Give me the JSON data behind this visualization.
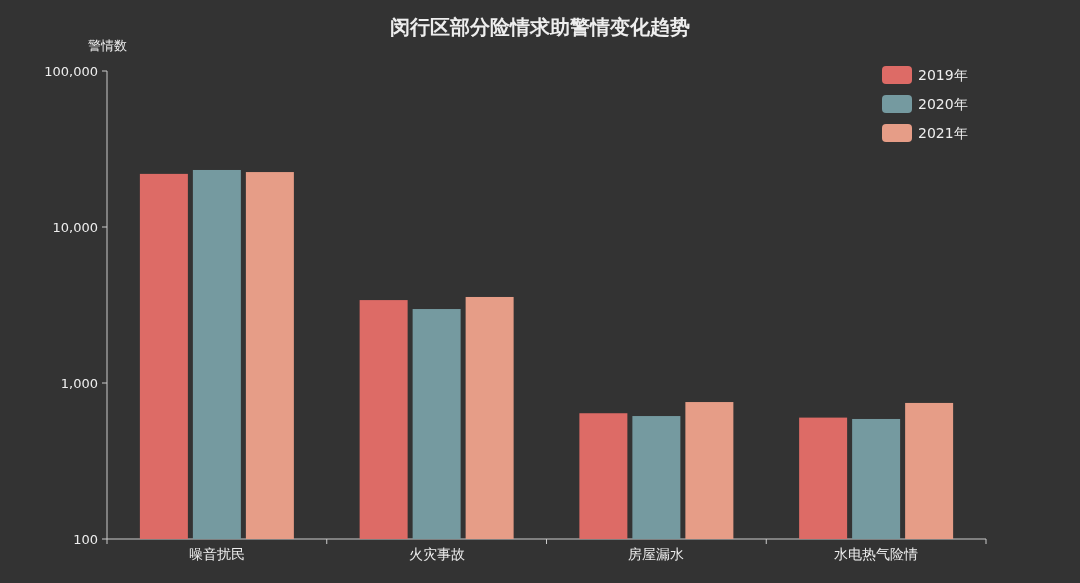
{
  "chart_data": {
    "type": "bar",
    "title": "闵行区部分险情求助警情变化趋势",
    "ylabel": "警情数",
    "categories": [
      "噪音扰民",
      "火灾事故",
      "房屋漏水",
      "水电热气险情"
    ],
    "series": [
      {
        "name": "2019年",
        "color": "#dd6b66",
        "values": [
          21900,
          3400,
          640,
          600
        ]
      },
      {
        "name": "2020年",
        "color": "#759aa0",
        "values": [
          23200,
          2980,
          614,
          588
        ]
      },
      {
        "name": "2021年",
        "color": "#e69d87",
        "values": [
          22500,
          3560,
          755,
          745
        ]
      }
    ],
    "log": true,
    "ylim": [
      100,
      100000
    ],
    "yticks": [
      100,
      {
        "value": 1000,
        "label": "1,000"
      },
      {
        "value": 10000,
        "label": "10,000"
      },
      {
        "value": 100000,
        "label": "100,000"
      }
    ],
    "grid": false,
    "legend": "top right"
  }
}
